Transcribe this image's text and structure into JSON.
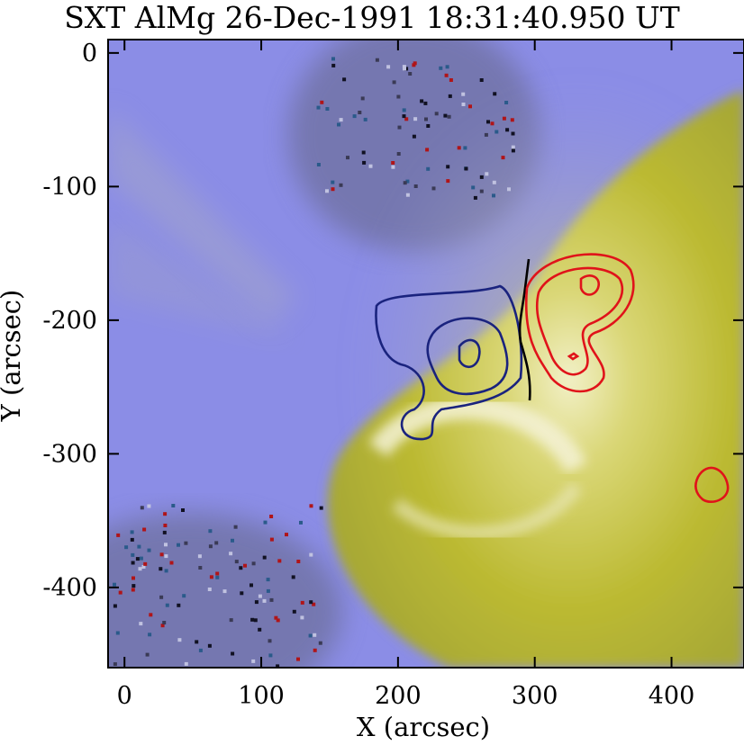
{
  "title": "SXT AlMg 26-Dec-1991 18:31:40.950 UT",
  "x_axis": {
    "label": "X (arcsec)",
    "range": [
      -12,
      453
    ],
    "ticks": [
      0,
      100,
      200,
      300,
      400
    ],
    "tick_labels": [
      "0",
      "100",
      "200",
      "300",
      "400"
    ]
  },
  "y_axis": {
    "label": "Y (arcsec)",
    "range": [
      -460,
      10
    ],
    "ticks": [
      0,
      -100,
      -200,
      -300,
      -400
    ],
    "tick_labels": [
      "0",
      "-100",
      "-200",
      "-300",
      "-400"
    ]
  },
  "colors": {
    "background_blue": "#8c8ee8",
    "flare_yellow": "#bcbb2a",
    "contour_blue": "#1a237e",
    "contour_red": "#e0131a",
    "neutral_line": "#000000"
  }
}
